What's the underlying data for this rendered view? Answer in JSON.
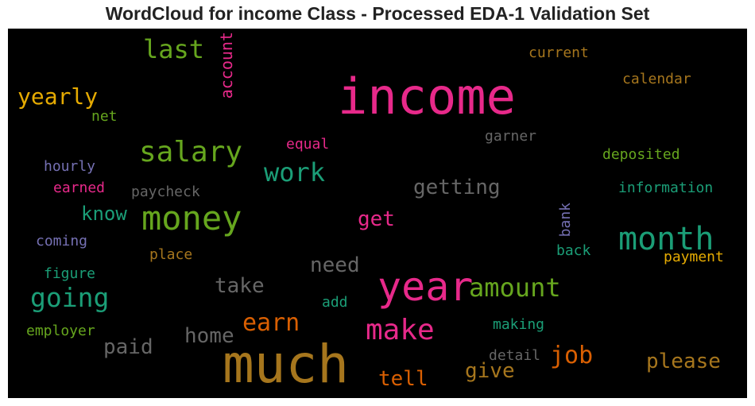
{
  "title": "WordCloud for income Class - Processed EDA-1 Validation Set",
  "chart_data": {
    "type": "wordcloud",
    "title": "WordCloud for income Class - Processed EDA-1 Validation Set",
    "words": [
      {
        "text": "income",
        "color": "#e7298a"
      },
      {
        "text": "much",
        "color": "#a6761d"
      },
      {
        "text": "year",
        "color": "#e7298a"
      },
      {
        "text": "money",
        "color": "#66a61e"
      },
      {
        "text": "month",
        "color": "#1b9e77"
      },
      {
        "text": "salary",
        "color": "#66a61e"
      },
      {
        "text": "make",
        "color": "#e7298a"
      },
      {
        "text": "going",
        "color": "#1b9e77"
      },
      {
        "text": "amount",
        "color": "#66a61e"
      },
      {
        "text": "work",
        "color": "#1b9e77"
      },
      {
        "text": "last",
        "color": "#66a61e"
      },
      {
        "text": "earn",
        "color": "#d95f02"
      },
      {
        "text": "job",
        "color": "#d95f02"
      },
      {
        "text": "yearly",
        "color": "#e6ab02"
      },
      {
        "text": "please",
        "color": "#a6761d"
      },
      {
        "text": "getting",
        "color": "#666666"
      },
      {
        "text": "give",
        "color": "#a6761d"
      },
      {
        "text": "tell",
        "color": "#d95f02"
      },
      {
        "text": "home",
        "color": "#666666"
      },
      {
        "text": "paid",
        "color": "#666666"
      },
      {
        "text": "take",
        "color": "#666666"
      },
      {
        "text": "need",
        "color": "#666666"
      },
      {
        "text": "get",
        "color": "#e7298a"
      },
      {
        "text": "know",
        "color": "#1b9e77"
      },
      {
        "text": "account",
        "color": "#e7298a"
      },
      {
        "text": "current",
        "color": "#a6761d"
      },
      {
        "text": "calendar",
        "color": "#a6761d"
      },
      {
        "text": "net",
        "color": "#66a61e"
      },
      {
        "text": "garner",
        "color": "#666666"
      },
      {
        "text": "equal",
        "color": "#e7298a"
      },
      {
        "text": "deposited",
        "color": "#66a61e"
      },
      {
        "text": "hourly",
        "color": "#7570b3"
      },
      {
        "text": "earned",
        "color": "#e7298a"
      },
      {
        "text": "paycheck",
        "color": "#666666"
      },
      {
        "text": "information",
        "color": "#1b9e77"
      },
      {
        "text": "bank",
        "color": "#7570b3"
      },
      {
        "text": "coming",
        "color": "#7570b3"
      },
      {
        "text": "place",
        "color": "#a6761d"
      },
      {
        "text": "back",
        "color": "#1b9e77"
      },
      {
        "text": "payment",
        "color": "#e6ab02"
      },
      {
        "text": "figure",
        "color": "#1b9e77"
      },
      {
        "text": "add",
        "color": "#1b9e77"
      },
      {
        "text": "employer",
        "color": "#66a61e"
      },
      {
        "text": "making",
        "color": "#1b9e77"
      },
      {
        "text": "detail",
        "color": "#666666"
      }
    ]
  }
}
